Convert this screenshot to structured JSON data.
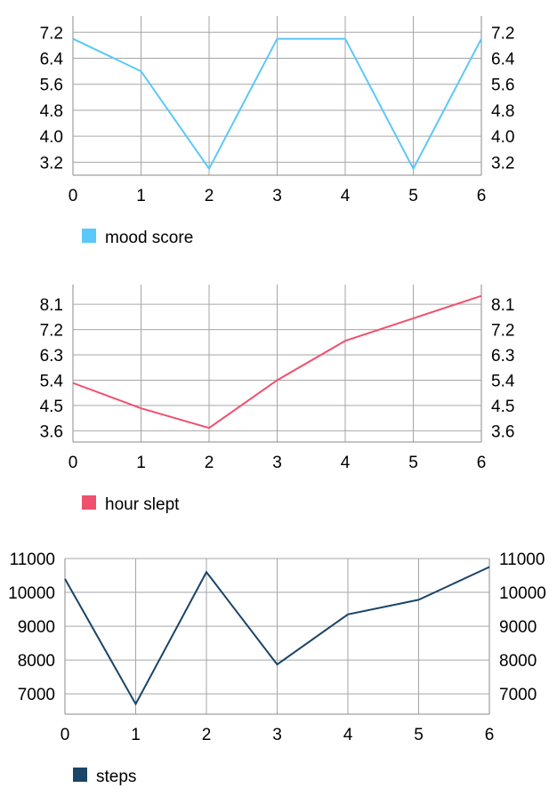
{
  "chart_data": [
    {
      "type": "line",
      "x": [
        0,
        1,
        2,
        3,
        4,
        5,
        6
      ],
      "series": [
        {
          "name": "mood score",
          "values": [
            7.0,
            6.0,
            3.0,
            7.0,
            7.0,
            3.0,
            7.0
          ],
          "color": "#5ac8fa"
        }
      ],
      "x_ticks": [
        "0",
        "1",
        "2",
        "3",
        "4",
        "5",
        "6"
      ],
      "y_ticks": [
        "7.2",
        "6.4",
        "5.6",
        "4.8",
        "4.0",
        "3.2"
      ],
      "xlim": [
        0,
        6
      ],
      "ylim": [
        2.8,
        7.7
      ],
      "grid": true,
      "legend": "bottom-left"
    },
    {
      "type": "line",
      "x": [
        0,
        1,
        2,
        3,
        4,
        5,
        6
      ],
      "series": [
        {
          "name": "hour slept",
          "values": [
            5.3,
            4.4,
            3.7,
            5.4,
            6.8,
            7.6,
            8.4
          ],
          "color": "#f0506e"
        }
      ],
      "x_ticks": [
        "0",
        "1",
        "2",
        "3",
        "4",
        "5",
        "6"
      ],
      "y_ticks": [
        "8.1",
        "7.2",
        "6.3",
        "5.4",
        "4.5",
        "3.6"
      ],
      "xlim": [
        0,
        6
      ],
      "ylim": [
        3.2,
        8.8
      ],
      "grid": true,
      "legend": "bottom-left"
    },
    {
      "type": "line",
      "x": [
        0,
        1,
        2,
        3,
        4,
        5,
        6
      ],
      "series": [
        {
          "name": "steps",
          "values": [
            10400,
            6700,
            10600,
            7870,
            9350,
            9780,
            10750
          ],
          "color": "#1b4569"
        }
      ],
      "x_ticks": [
        "0",
        "1",
        "2",
        "3",
        "4",
        "5",
        "6"
      ],
      "y_ticks": [
        "11000",
        "10000",
        "9000",
        "8000",
        "7000"
      ],
      "xlim": [
        0,
        6
      ],
      "ylim": [
        6400,
        11000
      ],
      "grid": true,
      "legend": "bottom-left"
    }
  ]
}
